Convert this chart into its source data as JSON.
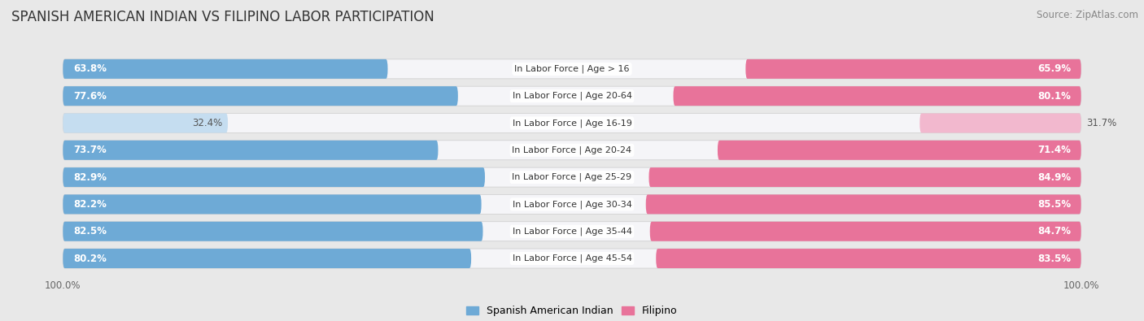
{
  "title": "SPANISH AMERICAN INDIAN VS FILIPINO LABOR PARTICIPATION",
  "source": "Source: ZipAtlas.com",
  "categories": [
    "In Labor Force | Age > 16",
    "In Labor Force | Age 20-64",
    "In Labor Force | Age 16-19",
    "In Labor Force | Age 20-24",
    "In Labor Force | Age 25-29",
    "In Labor Force | Age 30-34",
    "In Labor Force | Age 35-44",
    "In Labor Force | Age 45-54"
  ],
  "spanish_values": [
    63.8,
    77.6,
    32.4,
    73.7,
    82.9,
    82.2,
    82.5,
    80.2
  ],
  "filipino_values": [
    65.9,
    80.1,
    31.7,
    71.4,
    84.9,
    85.5,
    84.7,
    83.5
  ],
  "spanish_color": "#6eaad6",
  "spanish_color_light": "#c5ddf0",
  "filipino_color": "#e8739a",
  "filipino_color_light": "#f2b8ce",
  "bg_color": "#e8e8e8",
  "row_bg_color": "#f5f5f8",
  "title_fontsize": 12,
  "source_fontsize": 8.5,
  "bar_fontsize": 8.5,
  "label_fontsize": 8,
  "legend_fontsize": 9,
  "axis_label_fontsize": 8.5,
  "light_threshold": 50
}
